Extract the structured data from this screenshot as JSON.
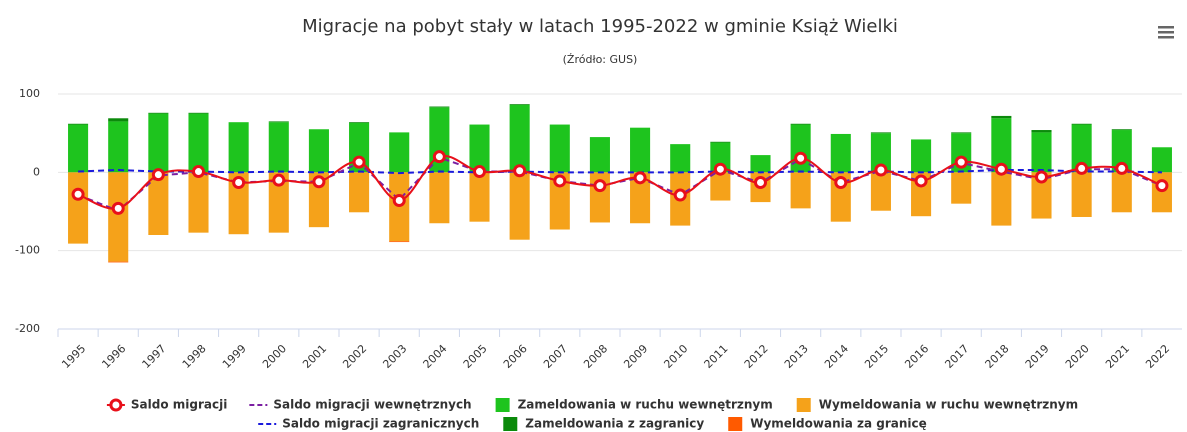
{
  "chart_data": {
    "type": "combo",
    "title": "Migracje na pobyt stały w latach 1995-2022 w gminie Książ Wielki",
    "subtitle": "(Źródło: GUS)",
    "categories": [
      "1995",
      "1996",
      "1997",
      "1998",
      "1999",
      "2000",
      "2001",
      "2002",
      "2003",
      "2004",
      "2005",
      "2006",
      "2007",
      "2008",
      "2009",
      "2010",
      "2011",
      "2012",
      "2013",
      "2014",
      "2015",
      "2016",
      "2017",
      "2018",
      "2019",
      "2020",
      "2021",
      "2022"
    ],
    "ylim": [
      -200,
      100
    ],
    "yticks": [
      -200,
      -100,
      0,
      100
    ],
    "grid": true,
    "series": [
      {
        "name": "Saldo migracji",
        "type": "line",
        "color": "#e8101a",
        "dashed": false,
        "markers": true,
        "values": [
          -28,
          -46,
          -3,
          1,
          -13,
          -10,
          -12,
          13,
          -36,
          20,
          1,
          2,
          -11,
          -17,
          -7,
          -29,
          4,
          -13,
          18,
          -13,
          3,
          -11,
          13,
          4,
          -6,
          5,
          5,
          -17
        ]
      },
      {
        "name": "Saldo migracji wewnętrznych",
        "type": "line",
        "color": "#7b1fa2",
        "dashed": true,
        "markers": false,
        "values": [
          -29,
          -49,
          -4,
          0,
          -13,
          -11,
          -12,
          12,
          -35,
          19,
          1,
          1,
          -11,
          -17,
          -7,
          -29,
          3,
          -13,
          17,
          -13,
          2,
          -11,
          12,
          1,
          -9,
          4,
          4,
          -17
        ]
      },
      {
        "name": "Zameldowania w ruchu wewnętrznym",
        "type": "bar",
        "color": "#1ec41e",
        "values": [
          61,
          65,
          75,
          75,
          64,
          64,
          55,
          63,
          51,
          83,
          61,
          86,
          61,
          45,
          57,
          36,
          38,
          22,
          61,
          49,
          50,
          42,
          50,
          69,
          51,
          61,
          54,
          32
        ]
      },
      {
        "name": "Wymeldowania w ruchu wewnętrznym",
        "type": "bar",
        "color": "#f5a21a",
        "values": [
          -91,
          -114,
          -80,
          -77,
          -79,
          -77,
          -70,
          -51,
          -88,
          -65,
          -63,
          -86,
          -73,
          -64,
          -65,
          -68,
          -36,
          -38,
          -46,
          -63,
          -49,
          -56,
          -40,
          -68,
          -59,
          -57,
          -51,
          -51
        ]
      },
      {
        "name": "Saldo migracji zagranicznych",
        "type": "line",
        "color": "#1a1adc",
        "dashed": true,
        "markers": false,
        "values": [
          1,
          3,
          1,
          1,
          0,
          1,
          0,
          1,
          -1,
          1,
          0,
          1,
          0,
          0,
          0,
          0,
          1,
          0,
          1,
          0,
          1,
          0,
          1,
          3,
          3,
          1,
          1,
          0
        ]
      },
      {
        "name": "Zameldowania z zagranicy",
        "type": "bar",
        "color": "#0b8a0b",
        "values": [
          1,
          4,
          1,
          1,
          0,
          1,
          0,
          1,
          0,
          1,
          0,
          1,
          0,
          0,
          0,
          0,
          1,
          0,
          1,
          0,
          1,
          0,
          1,
          3,
          3,
          1,
          1,
          0
        ]
      },
      {
        "name": "Wymeldowania za granicę",
        "type": "bar",
        "color": "#ff5a00",
        "values": [
          0,
          -1,
          0,
          0,
          0,
          0,
          0,
          0,
          -1,
          0,
          0,
          0,
          0,
          0,
          0,
          0,
          0,
          0,
          0,
          0,
          0,
          0,
          0,
          0,
          0,
          0,
          0,
          0
        ]
      }
    ]
  }
}
